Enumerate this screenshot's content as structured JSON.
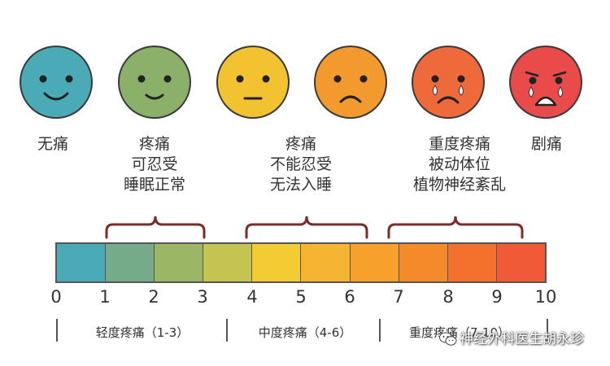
{
  "faces": [
    {
      "label_lines": [
        "无痛"
      ],
      "color": "#4aaab5",
      "mood": "smile"
    },
    {
      "label_lines": [
        "疼痛",
        "可忍受",
        "睡眠正常"
      ],
      "color": "#8ab06a",
      "mood": "small-smile"
    },
    {
      "label_lines": [],
      "color": "#f2c230",
      "mood": "neutral"
    },
    {
      "label_lines": [
        "疼痛",
        "不能忍受",
        "无法入睡"
      ],
      "color": "#f39a2e",
      "mood": "frown"
    },
    {
      "label_lines": [
        "重度疼痛",
        "被动体位",
        "植物神经紊乱"
      ],
      "color": "#ef6a3a",
      "mood": "cry"
    },
    {
      "label_lines": [
        "剧痛"
      ],
      "color": "#e94b4b",
      "mood": "cry-hard"
    }
  ],
  "scale": {
    "ticks": [
      "0",
      "1",
      "2",
      "3",
      "4",
      "5",
      "6",
      "7",
      "8",
      "9",
      "10"
    ],
    "segment_colors": [
      "#4aaab5",
      "#76ab8a",
      "#9bb765",
      "#c6c451",
      "#f3cb33",
      "#f5b531",
      "#f7a02b",
      "#f58a2b",
      "#f4712d",
      "#f15a37",
      "#ee3a3a"
    ]
  },
  "ranges": [
    {
      "label": "轻度疼痛（1-3）"
    },
    {
      "label": "中度疼痛（4-6）"
    },
    {
      "label": "重度疼痛（7-10）"
    }
  ],
  "watermark": {
    "text": "神经外科医生胡永珍",
    "icon": "wechat-icon"
  }
}
